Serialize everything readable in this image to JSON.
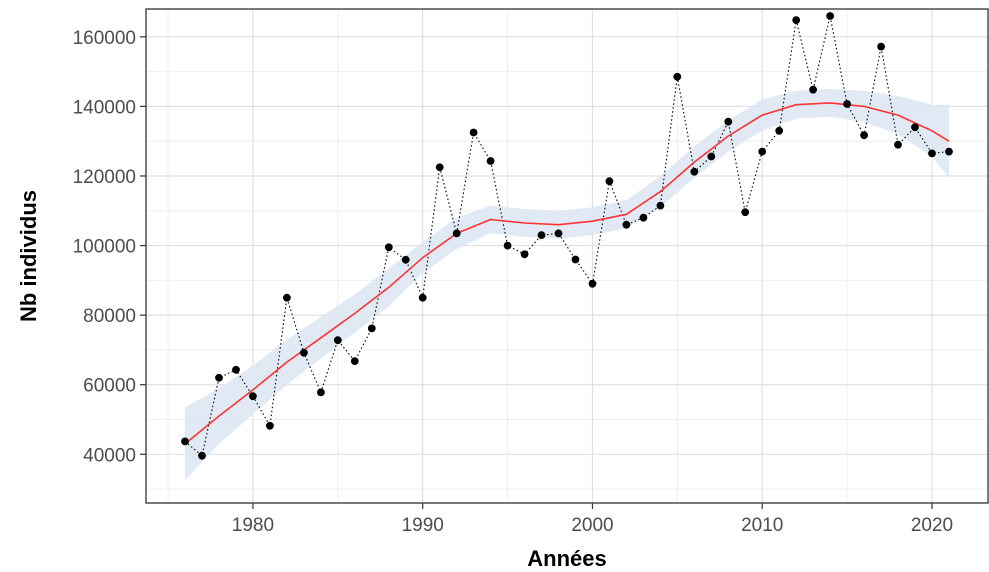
{
  "chart_data": {
    "type": "scatter",
    "xlabel": "Années",
    "ylabel": "Nb individus",
    "xlim": [
      1973.7,
      2023.3
    ],
    "ylim": [
      26000,
      168000
    ],
    "x_ticks": [
      1980,
      1990,
      2000,
      2010,
      2020
    ],
    "y_ticks": [
      40000,
      60000,
      80000,
      100000,
      120000,
      140000,
      160000
    ],
    "grid": true,
    "series": [
      {
        "style": "points-dotted-line",
        "color": "#000000",
        "x": [
          1976,
          1977,
          1978,
          1979,
          1980,
          1981,
          1982,
          1983,
          1984,
          1985,
          1986,
          1987,
          1988,
          1989,
          1990,
          1991,
          1992,
          1993,
          1994,
          1995,
          1996,
          1997,
          1998,
          1999,
          2000,
          2001,
          2002,
          2003,
          2004,
          2005,
          2006,
          2007,
          2008,
          2009,
          2010,
          2011,
          2012,
          2013,
          2014,
          2015,
          2016,
          2017,
          2018,
          2019,
          2020,
          2021
        ],
        "y": [
          43700,
          39600,
          62000,
          64300,
          56700,
          48200,
          85000,
          69200,
          57800,
          72800,
          66800,
          76200,
          99500,
          95900,
          85000,
          122500,
          103500,
          132500,
          124300,
          100000,
          97500,
          103000,
          103500,
          96000,
          89000,
          118500,
          106000,
          108000,
          111500,
          148500,
          121200,
          125600,
          135600,
          109600,
          127000,
          133000,
          164800,
          144800,
          166000,
          140700,
          131700,
          157200,
          129000,
          134000,
          126500,
          127000
        ]
      },
      {
        "style": "loess-smooth",
        "color": "#ff3333",
        "band_color": "#dce6f2",
        "x": [
          1976,
          1978,
          1980,
          1982,
          1984,
          1986,
          1988,
          1990,
          1992,
          1994,
          1996,
          1998,
          2000,
          2002,
          2004,
          2006,
          2008,
          2010,
          2012,
          2014,
          2016,
          2018,
          2020,
          2021
        ],
        "y": [
          43000,
          51000,
          58500,
          66500,
          73500,
          80500,
          88000,
          96500,
          103500,
          107500,
          106500,
          106000,
          107000,
          109000,
          115500,
          124000,
          131500,
          137500,
          140500,
          141000,
          140000,
          137500,
          133000,
          130000
        ],
        "band_lower": [
          32500,
          43000,
          51500,
          60000,
          67500,
          75000,
          82500,
          92000,
          99000,
          103500,
          102500,
          102000,
          103000,
          105000,
          111000,
          119500,
          127000,
          133000,
          136500,
          137000,
          135500,
          132000,
          125500,
          119500
        ],
        "band_upper": [
          53500,
          59000,
          65500,
          73000,
          79500,
          86000,
          93500,
          101000,
          108000,
          111500,
          110500,
          110000,
          111000,
          113000,
          120000,
          128500,
          136000,
          142000,
          144500,
          145000,
          144500,
          143000,
          140500,
          140500
        ]
      }
    ]
  }
}
